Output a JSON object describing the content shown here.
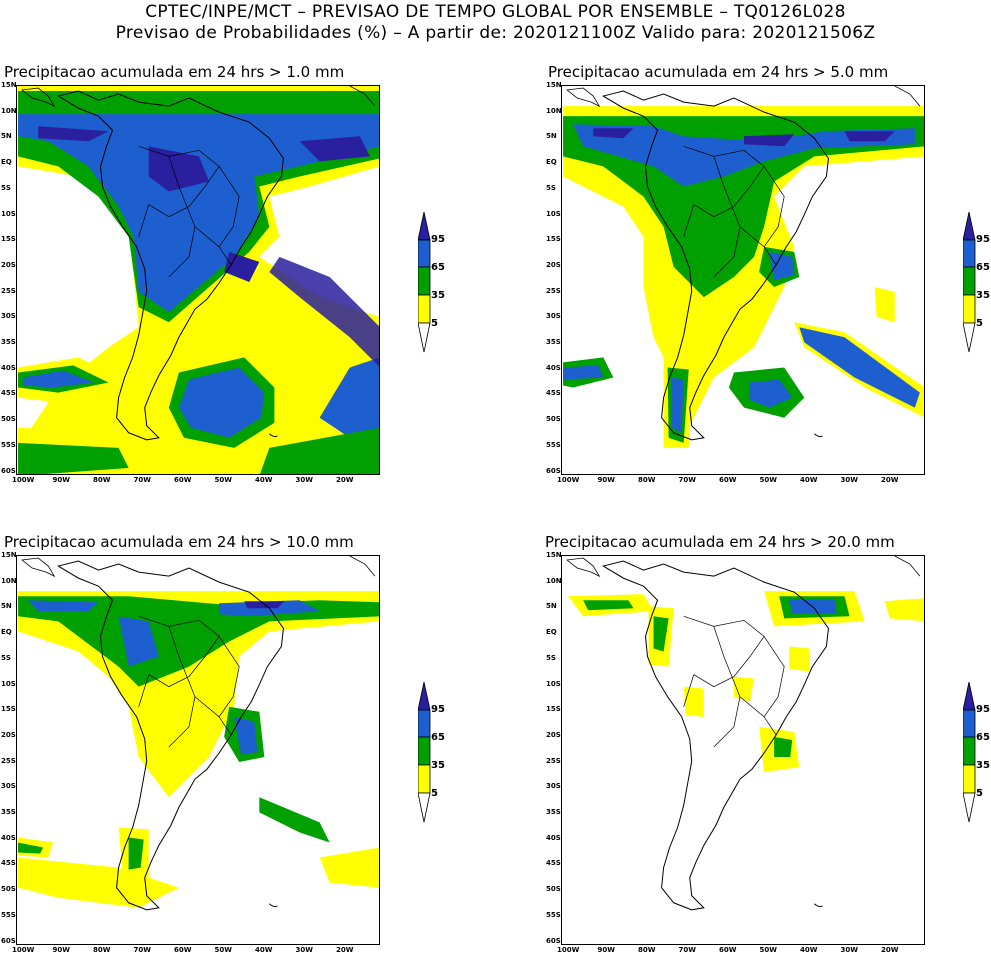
{
  "header": {
    "line1": "CPTEC/INPE/MCT – PREVISAO DE TEMPO GLOBAL POR ENSEMBLE – TQ0126L028",
    "line2": "Previsao de Probabilidades (%) –  A partir de: 2020121100Z  Valido para: 2020121506Z"
  },
  "panels": [
    {
      "title": "Precipitacao acumulada em 24 hrs > 1.0 mm"
    },
    {
      "title": "Precipitacao acumulada em 24 hrs > 5.0 mm"
    },
    {
      "title": "Precipitacao acumulada em 24 hrs > 10.0 mm"
    },
    {
      "title": "Precipitacao acumulada em 24 hrs > 20.0 mm"
    }
  ],
  "lat_labels": [
    "15N",
    "10N",
    "5N",
    "EQ",
    "5S",
    "10S",
    "15S",
    "20S",
    "25S",
    "30S",
    "35S",
    "40S",
    "45S",
    "50S",
    "55S",
    "60S"
  ],
  "lon_labels": [
    "100W",
    "90W",
    "80W",
    "70W",
    "60W",
    "50W",
    "40W",
    "30W",
    "20W"
  ],
  "colorbar": {
    "labels": [
      "95",
      "65",
      "35",
      "5"
    ],
    "colors": {
      "c5": "#ffff00",
      "c35": "#00a000",
      "c65": "#1e5fd0",
      "c95": "#2a1f9e"
    }
  }
}
